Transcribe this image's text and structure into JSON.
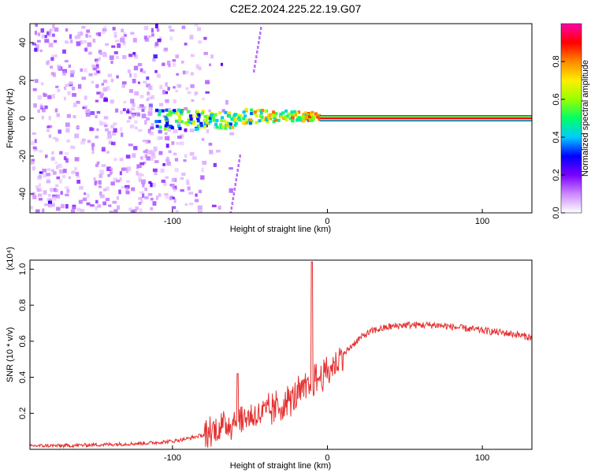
{
  "title": "C2E2.2024.225.22.19.G07",
  "chart_data": [
    {
      "type": "heatmap",
      "xlabel": "Height of straight line (km)",
      "ylabel": "Frequency (Hz)",
      "xlim": [
        -192,
        132
      ],
      "ylim": [
        -50,
        50
      ],
      "xticks": [
        -100,
        0,
        100
      ],
      "xtick_labels": [
        "-100",
        "0",
        "100"
      ],
      "yticks": [
        -40,
        -20,
        0,
        20,
        40
      ],
      "ytick_labels": [
        "-40",
        "-20",
        "0",
        "20",
        "40"
      ],
      "colorbar": {
        "label": "Normalized spectral amplitude",
        "range": [
          0,
          1
        ],
        "ticks": [
          0,
          0.2,
          0.4,
          0.6,
          0.8
        ],
        "tick_labels": [
          "0.0",
          "0.2",
          "0.4",
          "0.6",
          "0.8"
        ],
        "colors": [
          "#ffffff",
          "#cc88ff",
          "#7a00ff",
          "#0000ff",
          "#00ccff",
          "#00ff66",
          "#99ff00",
          "#ffee00",
          "#ff8800",
          "#ff0000",
          "#ff00aa"
        ]
      },
      "signal_line": {
        "frequency": 0,
        "from_x": -5,
        "to_x": 132,
        "amplitude": 0.9
      },
      "noise_region_x": [
        -192,
        -85
      ],
      "transition_region_x": [
        -112,
        -5
      ]
    },
    {
      "type": "line",
      "xlabel": "Height of straight line (km)",
      "ylabel": "SNR (10 * v/v)",
      "scale_note": "(x10⁴)",
      "xlim": [
        -192,
        132
      ],
      "ylim": [
        0,
        1.05
      ],
      "xticks": [
        -100,
        0,
        100
      ],
      "xtick_labels": [
        "-100",
        "0",
        "100"
      ],
      "yticks": [
        0.2,
        0.4,
        0.6,
        0.8,
        1.0
      ],
      "ytick_labels": [
        "0.2",
        "0.4",
        "0.6",
        "0.8",
        "1.0"
      ],
      "line_color": "#e53030",
      "series": [
        {
          "x": [
            -192,
            -170,
            -150,
            -130,
            -115,
            -100,
            -90,
            -80,
            -75,
            -70,
            -65,
            -60,
            -55,
            -50,
            -45,
            -40,
            -35,
            -30,
            -25,
            -20,
            -15,
            -12,
            -10,
            -8,
            -5,
            0,
            5,
            10,
            15,
            20,
            25,
            30,
            40,
            50,
            60,
            70,
            80,
            90,
            100,
            110,
            120,
            132
          ],
          "values": [
            0.02,
            0.02,
            0.025,
            0.03,
            0.035,
            0.045,
            0.06,
            0.08,
            0.1,
            0.12,
            0.14,
            0.16,
            0.17,
            0.18,
            0.19,
            0.2,
            0.22,
            0.24,
            0.27,
            0.3,
            0.33,
            0.34,
            0.36,
            0.38,
            0.4,
            0.43,
            0.47,
            0.52,
            0.57,
            0.61,
            0.64,
            0.66,
            0.68,
            0.69,
            0.69,
            0.69,
            0.68,
            0.67,
            0.66,
            0.65,
            0.64,
            0.62
          ]
        }
      ],
      "spikes": [
        {
          "x": -58,
          "value": 0.42
        },
        {
          "x": -10,
          "value": 1.04
        }
      ]
    }
  ]
}
